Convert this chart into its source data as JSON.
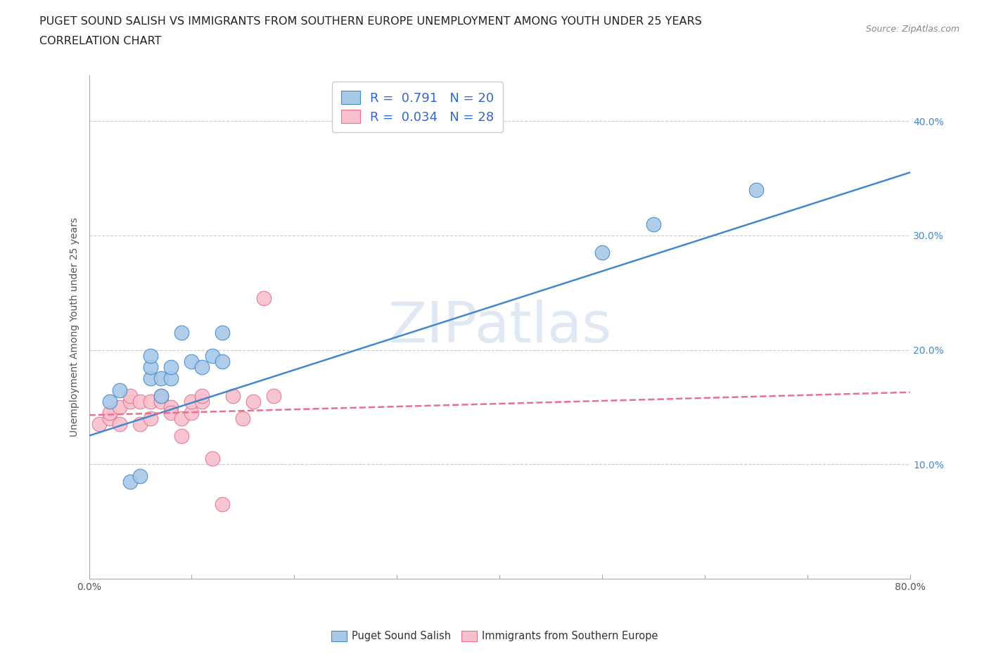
{
  "title_line1": "PUGET SOUND SALISH VS IMMIGRANTS FROM SOUTHERN EUROPE UNEMPLOYMENT AMONG YOUTH UNDER 25 YEARS",
  "title_line2": "CORRELATION CHART",
  "source_text": "Source: ZipAtlas.com",
  "ylabel": "Unemployment Among Youth under 25 years",
  "watermark": "ZIPatlas",
  "xlim": [
    0.0,
    0.8
  ],
  "ylim": [
    0.0,
    0.44
  ],
  "xticks": [
    0.0,
    0.1,
    0.2,
    0.3,
    0.4,
    0.5,
    0.6,
    0.7,
    0.8
  ],
  "yticks": [
    0.0,
    0.1,
    0.2,
    0.3,
    0.4
  ],
  "ytick_labels_left": [
    "",
    "",
    "",
    "",
    ""
  ],
  "ytick_labels_right": [
    "",
    "10.0%",
    "20.0%",
    "30.0%",
    "40.0%"
  ],
  "xtick_labels_show": [
    "0.0%",
    "",
    "",
    "",
    "",
    "",
    "",
    "",
    "80.0%"
  ],
  "blue_scatter_x": [
    0.02,
    0.03,
    0.04,
    0.05,
    0.06,
    0.06,
    0.06,
    0.07,
    0.07,
    0.08,
    0.08,
    0.09,
    0.1,
    0.11,
    0.12,
    0.13,
    0.13,
    0.5,
    0.55,
    0.65
  ],
  "blue_scatter_y": [
    0.155,
    0.165,
    0.085,
    0.09,
    0.175,
    0.185,
    0.195,
    0.16,
    0.175,
    0.175,
    0.185,
    0.215,
    0.19,
    0.185,
    0.195,
    0.19,
    0.215,
    0.285,
    0.31,
    0.34
  ],
  "pink_scatter_x": [
    0.01,
    0.02,
    0.02,
    0.03,
    0.03,
    0.04,
    0.04,
    0.05,
    0.05,
    0.06,
    0.06,
    0.07,
    0.07,
    0.08,
    0.08,
    0.09,
    0.09,
    0.1,
    0.1,
    0.11,
    0.11,
    0.12,
    0.13,
    0.14,
    0.15,
    0.16,
    0.17,
    0.18
  ],
  "pink_scatter_y": [
    0.135,
    0.14,
    0.145,
    0.15,
    0.135,
    0.155,
    0.16,
    0.155,
    0.135,
    0.14,
    0.155,
    0.16,
    0.155,
    0.15,
    0.145,
    0.14,
    0.125,
    0.145,
    0.155,
    0.155,
    0.16,
    0.105,
    0.065,
    0.16,
    0.14,
    0.155,
    0.245,
    0.16
  ],
  "blue_line_x": [
    0.0,
    0.8
  ],
  "blue_line_y": [
    0.125,
    0.355
  ],
  "pink_line_x": [
    0.0,
    0.8
  ],
  "pink_line_y": [
    0.143,
    0.163
  ],
  "blue_R": "0.791",
  "blue_N": "20",
  "pink_R": "0.034",
  "pink_N": "28",
  "blue_color": "#a8c8e8",
  "blue_line_color": "#4488cc",
  "pink_color": "#f8c0cc",
  "pink_line_color": "#e87090",
  "grid_color": "#cccccc",
  "background_color": "#ffffff",
  "legend_text_color": "#3366cc",
  "title_fontsize": 11.5,
  "subtitle_fontsize": 11.5,
  "axis_label_fontsize": 10,
  "tick_fontsize": 10,
  "legend_fontsize": 13,
  "watermark_color": "#c8d8ea",
  "watermark_fontsize": 58,
  "scatter_size": 220,
  "legend_label1": "R =  0.791   N = 20",
  "legend_label2": "R =  0.034   N = 28",
  "bottom_legend_label1": "Puget Sound Salish",
  "bottom_legend_label2": "Immigrants from Southern Europe"
}
